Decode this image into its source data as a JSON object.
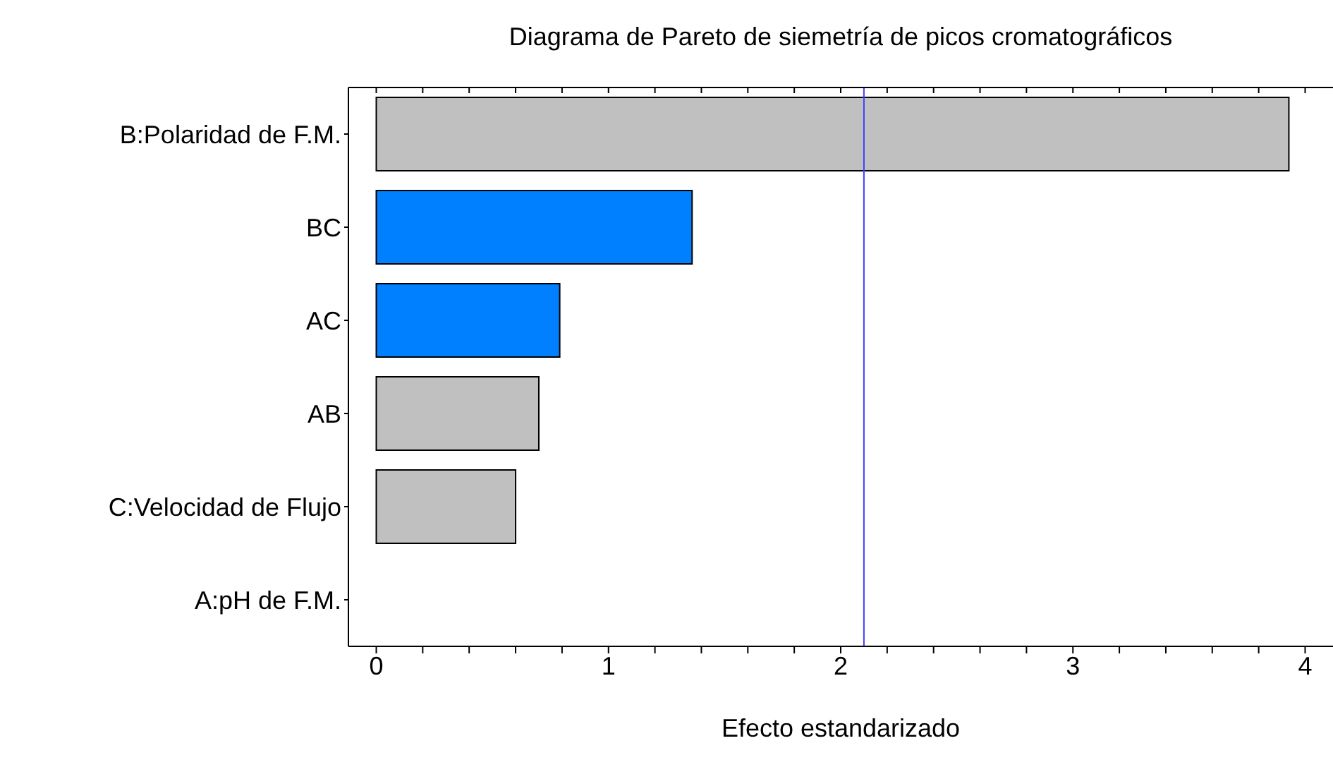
{
  "chart_data": {
    "type": "bar",
    "orientation": "horizontal",
    "title": "Diagrama de Pareto de siemetría de picos cromatográficos",
    "xlabel": "Efecto estandarizado",
    "categories": [
      "B:Polaridad de F.M.",
      "BC",
      "AC",
      "AB",
      "C:Velocidad de Flujo",
      "A:pH de F.M."
    ],
    "values": [
      3.93,
      1.36,
      0.79,
      0.7,
      0.6,
      0.0
    ],
    "colors": [
      "#c0c0c0",
      "#0080ff",
      "#0080ff",
      "#c0c0c0",
      "#c0c0c0",
      "#c0c0c0"
    ],
    "xlim": [
      -0.12,
      4.12
    ],
    "xticks": [
      0,
      {
        "value": 0.2,
        "label": null
      },
      {
        "value": 0.4,
        "label": null
      },
      {
        "value": 0.6,
        "label": null
      },
      {
        "value": 0.8,
        "label": null
      },
      1,
      {
        "value": 1.2,
        "label": null
      },
      {
        "value": 1.4,
        "label": null
      },
      {
        "value": 1.6,
        "label": null
      },
      {
        "value": 1.8,
        "label": null
      },
      2,
      {
        "value": 2.2,
        "label": null
      },
      {
        "value": 2.4,
        "label": null
      },
      {
        "value": 2.6,
        "label": null
      },
      {
        "value": 2.8,
        "label": null
      },
      3,
      {
        "value": 3.2,
        "label": null
      },
      {
        "value": 3.4,
        "label": null
      },
      {
        "value": 3.6,
        "label": null
      },
      {
        "value": 3.8,
        "label": null
      },
      4
    ],
    "ref_lines": [
      {
        "axis": "x",
        "value": 2.1,
        "color": "#4040ff"
      }
    ],
    "grid": false,
    "legend": false
  }
}
